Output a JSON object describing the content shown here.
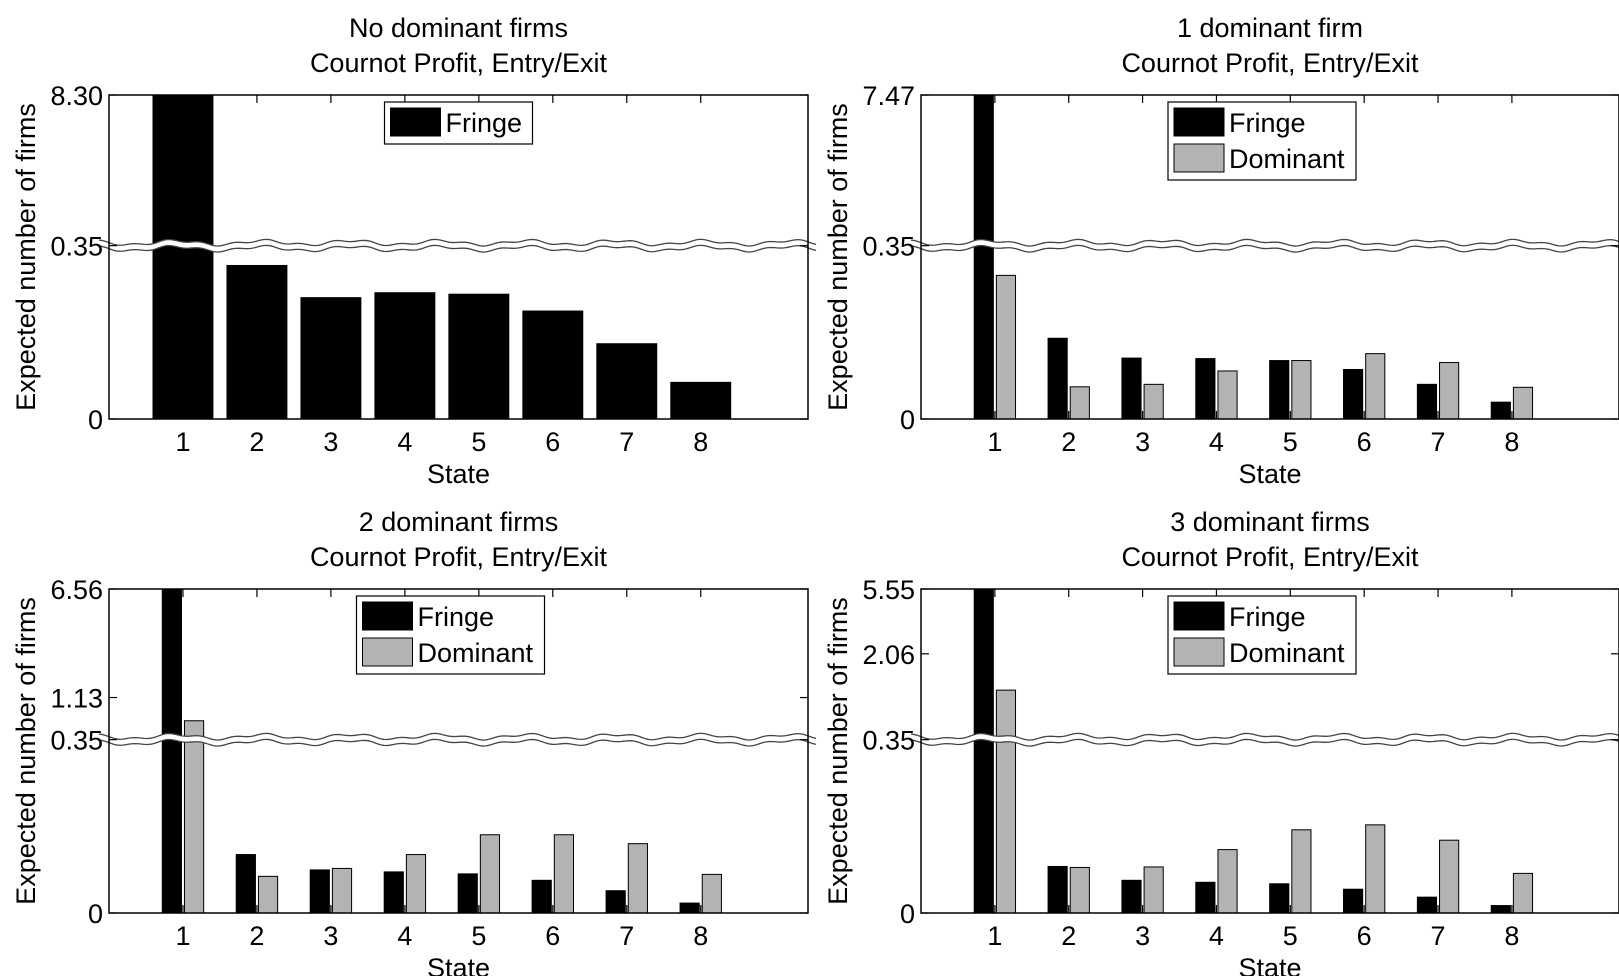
{
  "chart_data": [
    {
      "type": "bar",
      "title": "No dominant firms",
      "subtitle": "Cournot Profit, Entry/Exit",
      "xlabel": "State",
      "ylabel": "Expected number of firms",
      "categories": [
        "1",
        "2",
        "3",
        "4",
        "5",
        "6",
        "7",
        "8"
      ],
      "ytick_labels": [
        "0",
        "0.35",
        "8.30"
      ],
      "ylim": [
        0,
        8.3
      ],
      "axis_break_at": 0.35,
      "series": [
        {
          "name": "Fringe",
          "color": "#000000",
          "values": [
            8.3,
            0.31,
            0.245,
            0.255,
            0.252,
            0.218,
            0.152,
            0.074
          ]
        }
      ],
      "legend_position": "top-center",
      "grid": false
    },
    {
      "type": "bar",
      "title": "1 dominant firm",
      "subtitle": "Cournot Profit, Entry/Exit",
      "xlabel": "State",
      "ylabel": "Expected number of firms",
      "categories": [
        "1",
        "2",
        "3",
        "4",
        "5",
        "6",
        "7",
        "8"
      ],
      "ytick_labels": [
        "0",
        "0.35",
        "7.47"
      ],
      "ylim": [
        0,
        7.47
      ],
      "axis_break_at": 0.35,
      "series": [
        {
          "name": "Fringe",
          "color": "#000000",
          "values": [
            7.47,
            0.163,
            0.123,
            0.122,
            0.118,
            0.1,
            0.07,
            0.034
          ]
        },
        {
          "name": "Dominant",
          "color": "#b3b3b3",
          "values": [
            0.29,
            0.065,
            0.07,
            0.097,
            0.118,
            0.132,
            0.114,
            0.064
          ]
        }
      ],
      "legend_position": "top-center",
      "grid": false
    },
    {
      "type": "bar",
      "title": "2 dominant firms",
      "subtitle": "Cournot Profit, Entry/Exit",
      "xlabel": "State",
      "ylabel": "Expected number of firms",
      "categories": [
        "1",
        "2",
        "3",
        "4",
        "5",
        "6",
        "7",
        "8"
      ],
      "ytick_labels": [
        "0",
        "0.35",
        "1.13",
        "6.56"
      ],
      "ylim": [
        0,
        6.56
      ],
      "axis_break_at": 0.35,
      "series": [
        {
          "name": "Fringe",
          "color": "#000000",
          "values": [
            6.56,
            0.118,
            0.087,
            0.083,
            0.079,
            0.066,
            0.045,
            0.02
          ]
        },
        {
          "name": "Dominant",
          "color": "#b3b3b3",
          "values": [
            1.13,
            0.074,
            0.09,
            0.118,
            0.158,
            0.158,
            0.14,
            0.078
          ]
        }
      ],
      "legend_position": "top-center",
      "grid": false
    },
    {
      "type": "bar",
      "title": "3 dominant firms",
      "subtitle": "Cournot Profit, Entry/Exit",
      "xlabel": "State",
      "ylabel": "Expected number of firms",
      "categories": [
        "1",
        "2",
        "3",
        "4",
        "5",
        "6",
        "7",
        "8"
      ],
      "ytick_labels": [
        "0",
        "0.35",
        "2.06",
        "5.55"
      ],
      "ylim": [
        0,
        5.55
      ],
      "axis_break_at": 0.35,
      "series": [
        {
          "name": "Fringe",
          "color": "#000000",
          "values": [
            5.55,
            0.094,
            0.066,
            0.062,
            0.059,
            0.048,
            0.032,
            0.015
          ]
        },
        {
          "name": "Dominant",
          "color": "#b3b3b3",
          "values": [
            2.06,
            0.092,
            0.093,
            0.128,
            0.168,
            0.178,
            0.147,
            0.08
          ]
        }
      ],
      "legend_position": "top-center",
      "grid": false
    }
  ]
}
